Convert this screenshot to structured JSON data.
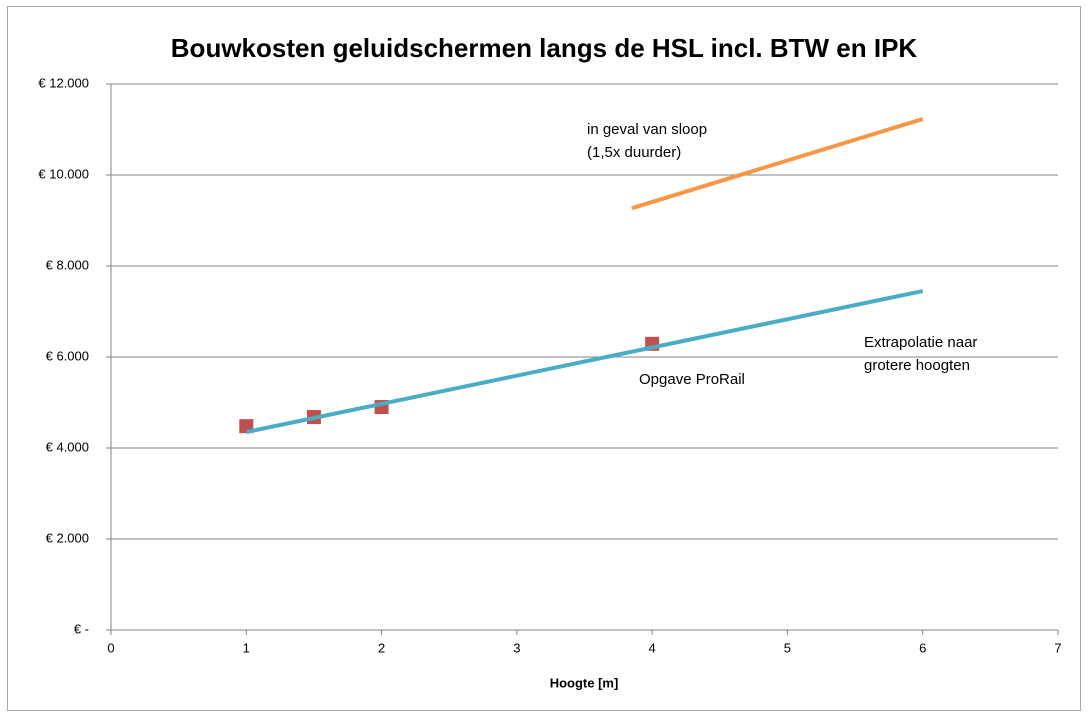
{
  "chart_data": {
    "type": "scatter",
    "title": "Bouwkosten geluidschermen langs de HSL incl. BTW en IPK",
    "x_label": "Hoogte [m]",
    "xlim": [
      0,
      7
    ],
    "xticks": [
      0,
      1,
      2,
      3,
      4,
      5,
      6,
      7
    ],
    "ylim": [
      0,
      12000
    ],
    "yticks": [
      {
        "value": 0,
        "label": "€ -"
      },
      {
        "value": 2000,
        "label": "€ 2.000"
      },
      {
        "value": 4000,
        "label": "€ 4.000"
      },
      {
        "value": 6000,
        "label": "€ 6.000"
      },
      {
        "value": 8000,
        "label": "€ 8.000"
      },
      {
        "value": 10000,
        "label": "€ 10.000"
      },
      {
        "value": 12000,
        "label": "€ 12.000"
      }
    ],
    "grid": true,
    "series": [
      {
        "type": "scatter",
        "color": "#c0504d",
        "x": [
          1,
          1.5,
          2,
          4
        ],
        "values": [
          4480,
          4680,
          4900,
          6290
        ]
      },
      {
        "type": "line",
        "color": "#4bacc6",
        "x": [
          1,
          6
        ],
        "values": [
          4350,
          7450
        ]
      },
      {
        "type": "line",
        "color": "#f79646",
        "x": [
          3.85,
          6
        ],
        "values": [
          9270,
          11230
        ]
      }
    ],
    "annotations": [
      {
        "lines": [
          "in geval van sloop",
          "(1,5x duurder)"
        ]
      },
      {
        "lines": [
          "Extrapolatie naar",
          "grotere hoogten"
        ]
      },
      {
        "lines": [
          "Opgave ProRail"
        ]
      }
    ]
  }
}
